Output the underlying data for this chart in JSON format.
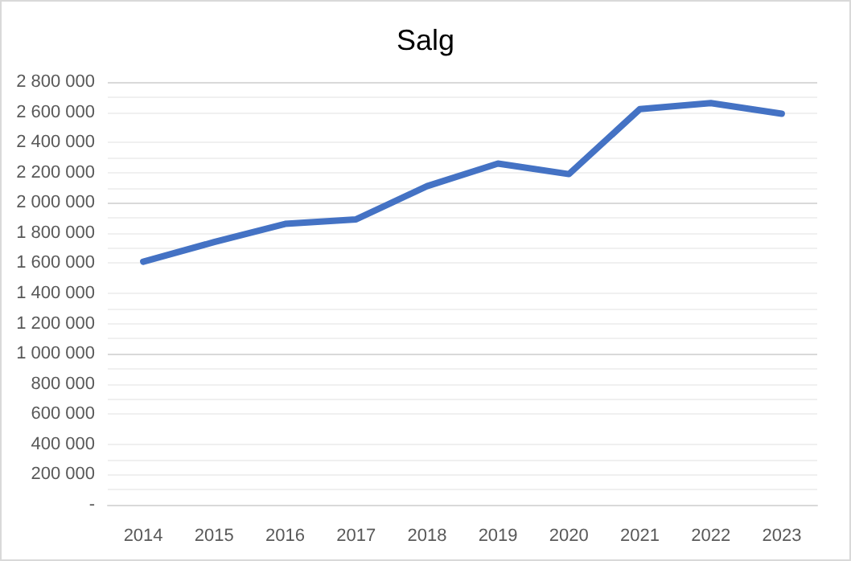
{
  "chart_data": {
    "type": "line",
    "title": "Salg",
    "categories": [
      "2014",
      "2015",
      "2016",
      "2017",
      "2018",
      "2019",
      "2020",
      "2021",
      "2022",
      "2023"
    ],
    "series": [
      {
        "color": "#4472c4",
        "values": [
          1610000,
          1740000,
          1860000,
          1890000,
          2110000,
          2260000,
          2190000,
          2620000,
          2660000,
          2590000
        ]
      }
    ],
    "ylim": [
      0,
      2800000
    ],
    "yticks": [
      {
        "value": 0,
        "label": "-"
      },
      {
        "value": 200000,
        "label": "200 000"
      },
      {
        "value": 400000,
        "label": "400 000"
      },
      {
        "value": 600000,
        "label": "600 000"
      },
      {
        "value": 800000,
        "label": "800 000"
      },
      {
        "value": 1000000,
        "label": "1 000 000"
      },
      {
        "value": 1200000,
        "label": "1 200 000"
      },
      {
        "value": 1400000,
        "label": "1 400 000"
      },
      {
        "value": 1600000,
        "label": "1 600 000"
      },
      {
        "value": 1800000,
        "label": "1 800 000"
      },
      {
        "value": 2000000,
        "label": "2 000 000"
      },
      {
        "value": 2200000,
        "label": "2 200 000"
      },
      {
        "value": 2400000,
        "label": "2 400 000"
      },
      {
        "value": 2600000,
        "label": "2 600 000"
      },
      {
        "value": 2800000,
        "label": "2 800 000"
      }
    ],
    "grid": "y",
    "marker": "none",
    "line_style": "solid"
  }
}
